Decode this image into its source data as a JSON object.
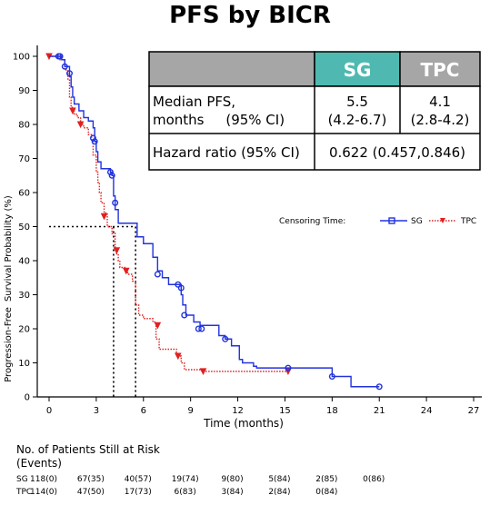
{
  "title": "PFS by BICR",
  "chart_data": {
    "type": "line",
    "title": "PFS by BICR",
    "xlabel": "Time (months)",
    "ylabel_lines": [
      "Progression-Free",
      "Survival Probability (%)"
    ],
    "xlim": [
      0,
      27
    ],
    "ylim": [
      0,
      100
    ],
    "xticks": [
      0,
      3,
      6,
      9,
      12,
      15,
      18,
      21,
      24,
      27
    ],
    "yticks": [
      0,
      10,
      20,
      30,
      40,
      50,
      60,
      70,
      80,
      90,
      100
    ],
    "grid": false,
    "legend": {
      "placement": "right, mid-plot",
      "prefix": "Censoring Time:",
      "entries": [
        "SG",
        "TPC"
      ]
    },
    "series": [
      {
        "name": "SG",
        "color": "#2233dd",
        "line_style": "solid",
        "steps": [
          [
            0,
            100
          ],
          [
            0.8,
            99
          ],
          [
            1.0,
            97
          ],
          [
            1.3,
            94
          ],
          [
            1.4,
            91
          ],
          [
            1.5,
            88
          ],
          [
            1.6,
            86
          ],
          [
            1.9,
            84
          ],
          [
            2.2,
            82
          ],
          [
            2.5,
            81
          ],
          [
            2.8,
            79
          ],
          [
            2.9,
            75
          ],
          [
            3.0,
            72
          ],
          [
            3.1,
            69
          ],
          [
            3.3,
            67
          ],
          [
            3.9,
            66
          ],
          [
            4.0,
            65
          ],
          [
            4.1,
            59
          ],
          [
            4.2,
            55
          ],
          [
            4.4,
            51
          ],
          [
            5.5,
            51
          ],
          [
            5.6,
            47
          ],
          [
            6.0,
            45
          ],
          [
            6.6,
            41
          ],
          [
            6.9,
            37
          ],
          [
            7.2,
            35
          ],
          [
            7.6,
            33
          ],
          [
            8.2,
            33
          ],
          [
            8.4,
            30
          ],
          [
            8.5,
            27
          ],
          [
            8.7,
            24
          ],
          [
            9.2,
            22
          ],
          [
            9.6,
            21
          ],
          [
            10.5,
            21
          ],
          [
            10.8,
            18
          ],
          [
            11.2,
            17
          ],
          [
            11.6,
            15
          ],
          [
            12.1,
            11
          ],
          [
            12.3,
            10
          ],
          [
            13.0,
            9
          ],
          [
            13.2,
            8.5
          ],
          [
            17.8,
            8.5
          ],
          [
            18.0,
            6
          ],
          [
            19.0,
            6
          ],
          [
            19.2,
            3
          ],
          [
            21.0,
            3
          ]
        ],
        "censored": [
          [
            0.6,
            100
          ],
          [
            0.7,
            100
          ],
          [
            1.0,
            97
          ],
          [
            1.3,
            95
          ],
          [
            2.8,
            76
          ],
          [
            2.9,
            75
          ],
          [
            3.9,
            66
          ],
          [
            4.0,
            65
          ],
          [
            4.2,
            57
          ],
          [
            6.9,
            36
          ],
          [
            8.2,
            33
          ],
          [
            8.4,
            32
          ],
          [
            8.6,
            24
          ],
          [
            9.5,
            20
          ],
          [
            9.7,
            20
          ],
          [
            11.2,
            17
          ],
          [
            15.2,
            8.5
          ],
          [
            18.0,
            6
          ],
          [
            21.0,
            3
          ]
        ]
      },
      {
        "name": "TPC",
        "color": "#e02020",
        "line_style": "dotted",
        "steps": [
          [
            0,
            100
          ],
          [
            0.7,
            99
          ],
          [
            1.0,
            96
          ],
          [
            1.2,
            93
          ],
          [
            1.3,
            88
          ],
          [
            1.4,
            85
          ],
          [
            1.6,
            83
          ],
          [
            1.8,
            82
          ],
          [
            2.0,
            80
          ],
          [
            2.2,
            79
          ],
          [
            2.5,
            77
          ],
          [
            2.7,
            75
          ],
          [
            2.8,
            71
          ],
          [
            3.0,
            66
          ],
          [
            3.1,
            63
          ],
          [
            3.2,
            60
          ],
          [
            3.3,
            57
          ],
          [
            3.5,
            54
          ],
          [
            3.7,
            50
          ],
          [
            4.0,
            48
          ],
          [
            4.2,
            44
          ],
          [
            4.3,
            42
          ],
          [
            4.4,
            40
          ],
          [
            4.5,
            38
          ],
          [
            4.9,
            37
          ],
          [
            5.0,
            36
          ],
          [
            5.3,
            34
          ],
          [
            5.5,
            27
          ],
          [
            5.7,
            24
          ],
          [
            6.0,
            23
          ],
          [
            6.6,
            22
          ],
          [
            6.8,
            17
          ],
          [
            7.0,
            14
          ],
          [
            8.1,
            12
          ],
          [
            8.4,
            10
          ],
          [
            8.6,
            8
          ],
          [
            9.6,
            8
          ],
          [
            9.7,
            7.5
          ],
          [
            13.0,
            7.5
          ],
          [
            15.2,
            7.5
          ]
        ],
        "censored": [
          [
            0,
            100
          ],
          [
            1.5,
            84
          ],
          [
            2.0,
            80
          ],
          [
            3.5,
            53
          ],
          [
            4.3,
            43
          ],
          [
            4.9,
            37
          ],
          [
            6.9,
            21
          ],
          [
            8.2,
            12
          ],
          [
            9.8,
            7.5
          ],
          [
            15.2,
            7.5
          ]
        ]
      }
    ],
    "median_refs": [
      {
        "series": "TPC",
        "x": 4.1,
        "y": 50
      },
      {
        "series": "SG",
        "x": 5.5,
        "y": 50
      }
    ]
  },
  "summary_table": {
    "headers": [
      "",
      "SG",
      "TPC"
    ],
    "header_colors": {
      "corner": "#a6a6a6",
      "sg": "#4fb9b1",
      "tpc": "#a6a6a6"
    },
    "median_label_line1": "Median PFS,",
    "median_label_line2": "months     (95% CI)",
    "median_sg_value": "5.5",
    "median_sg_ci": "(4.2-6.7)",
    "median_tpc_value": "4.1",
    "median_tpc_ci": "(2.8-4.2)",
    "hr_label": "Hazard ratio (95% CI)",
    "hr_value": "0.622 (0.457,0.846)"
  },
  "risk_table": {
    "heading_line1": "No. of Patients Still at Risk",
    "heading_line2": "(Events)",
    "times": [
      0,
      3,
      6,
      9,
      12,
      15,
      18,
      21
    ],
    "rows": [
      {
        "label": "SG",
        "values": [
          "118(0)",
          "67(35)",
          "40(57)",
          "19(74)",
          "9(80)",
          "5(84)",
          "2(85)",
          "0(86)"
        ]
      },
      {
        "label": "TPC",
        "values": [
          "114(0)",
          "47(50)",
          "17(73)",
          "6(83)",
          "3(84)",
          "2(84)",
          "0(84)",
          ""
        ]
      }
    ]
  }
}
